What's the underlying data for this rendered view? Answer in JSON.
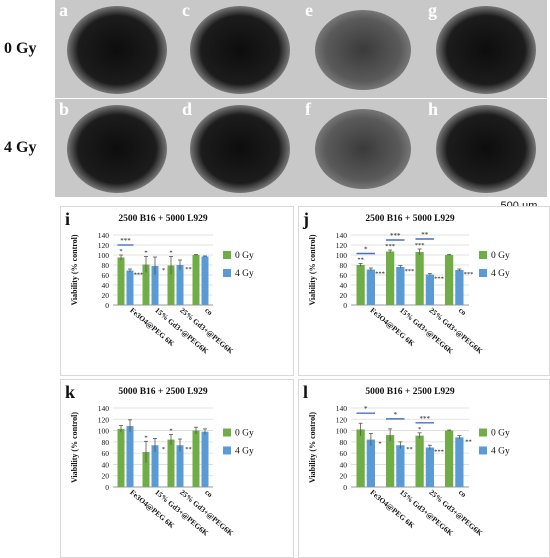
{
  "rows": {
    "top": "0 Gy",
    "bottom": "4 Gy"
  },
  "micrographs": [
    {
      "letter": "a",
      "tone": "dark"
    },
    {
      "letter": "c",
      "tone": "dark"
    },
    {
      "letter": "e",
      "tone": "mid"
    },
    {
      "letter": "g",
      "tone": "dark"
    },
    {
      "letter": "b",
      "tone": "dark"
    },
    {
      "letter": "d",
      "tone": "dark"
    },
    {
      "letter": "f",
      "tone": "mid"
    },
    {
      "letter": "h",
      "tone": "dark"
    }
  ],
  "scale_bar": {
    "label": "500 µm"
  },
  "colors": {
    "gy0": "#70ad47",
    "gy4": "#5b9bd5",
    "sig": "#4472c4",
    "text": "#111111",
    "grid": "#d9d9d9"
  },
  "chart_data": [
    {
      "letter": "i",
      "type": "bar",
      "title": "2500 B16 + 5000 L929",
      "ylabel": "Viability (% control)",
      "ylim": [
        0,
        140
      ],
      "yticks": [
        "0",
        "20",
        "40",
        "60",
        "80",
        "100",
        "120",
        "140"
      ],
      "categories": [
        "Fe3O4@PEG 6K",
        "15% Gd3+@PEG6K",
        "25% Gd3+@PEG6K",
        "co"
      ],
      "series": [
        {
          "name": "0 Gy",
          "values": [
            95,
            81,
            79,
            100
          ],
          "errors": [
            5,
            16,
            18,
            1
          ],
          "stars": [
            "*",
            "*",
            "*",
            ""
          ]
        },
        {
          "name": "4 Gy",
          "values": [
            69,
            78,
            80,
            97
          ],
          "errors": [
            3,
            18,
            10,
            1
          ],
          "stars": [
            "***",
            "*",
            "**",
            ""
          ]
        }
      ],
      "brackets": [
        {
          "category": 0,
          "label": "***"
        }
      ]
    },
    {
      "letter": "j",
      "type": "bar",
      "title": "2500 B16 + 5000 L929",
      "ylabel": "Viability (% control)",
      "ylim": [
        0,
        140
      ],
      "yticks": [
        "0",
        "20",
        "40",
        "60",
        "80",
        "100",
        "120",
        "140"
      ],
      "categories": [
        "Fe3O4@PEG 6K",
        "15% Gd3+@PEG6K",
        "25% Gd3+@PEG6K",
        "co"
      ],
      "series": [
        {
          "name": "0 Gy",
          "values": [
            80,
            107,
            106,
            100
          ],
          "errors": [
            3,
            3,
            6,
            1
          ],
          "stars": [
            "**",
            "***",
            "***",
            ""
          ]
        },
        {
          "name": "4 Gy",
          "values": [
            71,
            76,
            61,
            70
          ],
          "errors": [
            3,
            3,
            2,
            2
          ],
          "stars": [
            "***",
            "***",
            "***",
            "***"
          ]
        }
      ],
      "brackets": [
        {
          "category": 0,
          "label": "*"
        },
        {
          "category": 1,
          "label": "***"
        },
        {
          "category": 2,
          "label": "**"
        }
      ]
    },
    {
      "letter": "k",
      "type": "bar",
      "title": "5000 B16 + 2500 L929",
      "ylabel": "Viability (% control)",
      "ylim": [
        0,
        140
      ],
      "yticks": [
        "0",
        "20",
        "40",
        "60",
        "80",
        "100",
        "120",
        "140"
      ],
      "categories": [
        "Fe3O4@PEG 6K",
        "15% Gd3+@PEG6K",
        "25% Gd3+@PEG6K",
        "co"
      ],
      "series": [
        {
          "name": "0 Gy",
          "values": [
            103,
            62,
            84,
            100
          ],
          "errors": [
            6,
            19,
            9,
            6
          ],
          "stars": [
            "",
            "*",
            "*",
            ""
          ]
        },
        {
          "name": "4 Gy",
          "values": [
            108,
            74,
            74,
            98
          ],
          "errors": [
            11,
            12,
            11,
            5
          ],
          "stars": [
            "",
            "*",
            "**",
            ""
          ]
        }
      ],
      "brackets": []
    },
    {
      "letter": "l",
      "type": "bar",
      "title": "5000 B16 + 2500 L929",
      "ylabel": "Viability (% control)",
      "ylim": [
        0,
        140
      ],
      "yticks": [
        "0",
        "20",
        "40",
        "60",
        "80",
        "100",
        "120",
        "140"
      ],
      "categories": [
        "Fe3O4@PEG 6K",
        "15% Gd3+@PEG6K",
        "25% Gd3+@PEG6K",
        "co"
      ],
      "series": [
        {
          "name": "0 Gy",
          "values": [
            102,
            92,
            91,
            100
          ],
          "errors": [
            11,
            11,
            5,
            1
          ],
          "stars": [
            "",
            "",
            "*",
            ""
          ]
        },
        {
          "name": "4 Gy",
          "values": [
            84,
            74,
            70,
            88
          ],
          "errors": [
            11,
            6,
            4,
            3
          ],
          "stars": [
            "*",
            "**",
            "***",
            "**"
          ]
        }
      ],
      "brackets": [
        {
          "category": 0,
          "label": "*"
        },
        {
          "category": 1,
          "label": "*"
        },
        {
          "category": 2,
          "label": "***"
        }
      ]
    }
  ]
}
